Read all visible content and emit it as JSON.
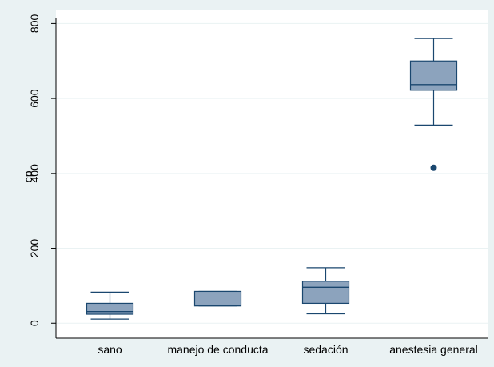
{
  "chart_data": {
    "type": "box",
    "title": "",
    "xlabel": "",
    "ylabel": "cp",
    "ylim": [
      -40,
      835
    ],
    "yticks": [
      0,
      200,
      400,
      600,
      800
    ],
    "grid": true,
    "legend": "none",
    "colors": {
      "background": "#eaf2f3",
      "plot_area": "#ffffff",
      "box_fill": "#8ca3bd",
      "box_stroke": "#1a476f",
      "outlier": "#1a476f",
      "grid": "#eaf2f3"
    },
    "categories": [
      "sano",
      "manejo de conducta",
      "sedación",
      "anestesia general"
    ],
    "boxes": [
      {
        "category": "sano",
        "whisker_low": 11,
        "q1": 24,
        "median": 31,
        "q3": 53,
        "whisker_high": 83,
        "outliers": []
      },
      {
        "category": "manejo de conducta",
        "whisker_low": 46,
        "q1": 46,
        "median": 48,
        "q3": 85,
        "whisker_high": 85,
        "outliers": []
      },
      {
        "category": "sedación",
        "whisker_low": 25,
        "q1": 53,
        "median": 96,
        "q3": 112,
        "whisker_high": 148,
        "outliers": []
      },
      {
        "category": "anestesia general",
        "whisker_low": 529,
        "q1": 622,
        "median": 637,
        "q3": 700,
        "whisker_high": 760,
        "outliers": [
          415
        ]
      }
    ]
  }
}
